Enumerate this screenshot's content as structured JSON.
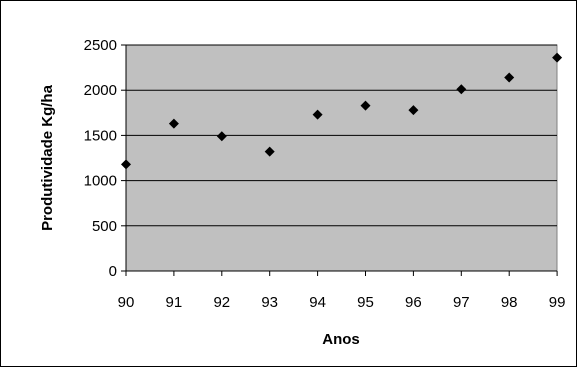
{
  "chart_data": {
    "type": "scatter",
    "title": "",
    "xlabel": "Anos",
    "ylabel": "Produtividade Kg/ha",
    "x": [
      "90",
      "91",
      "92",
      "93",
      "94",
      "95",
      "96",
      "97",
      "98",
      "99"
    ],
    "y": [
      1180,
      1630,
      1490,
      1320,
      1730,
      1830,
      1780,
      2010,
      2140,
      2360
    ],
    "ylim": [
      0,
      2500
    ],
    "yticks": [
      0,
      500,
      1000,
      1500,
      2000,
      2500
    ],
    "grid": "horizontal",
    "legend": "none",
    "colors": {
      "plot_background": "#c0c0c0",
      "marker": "#000000",
      "gridline": "#000000"
    },
    "marker_shape": "diamond-icon"
  }
}
